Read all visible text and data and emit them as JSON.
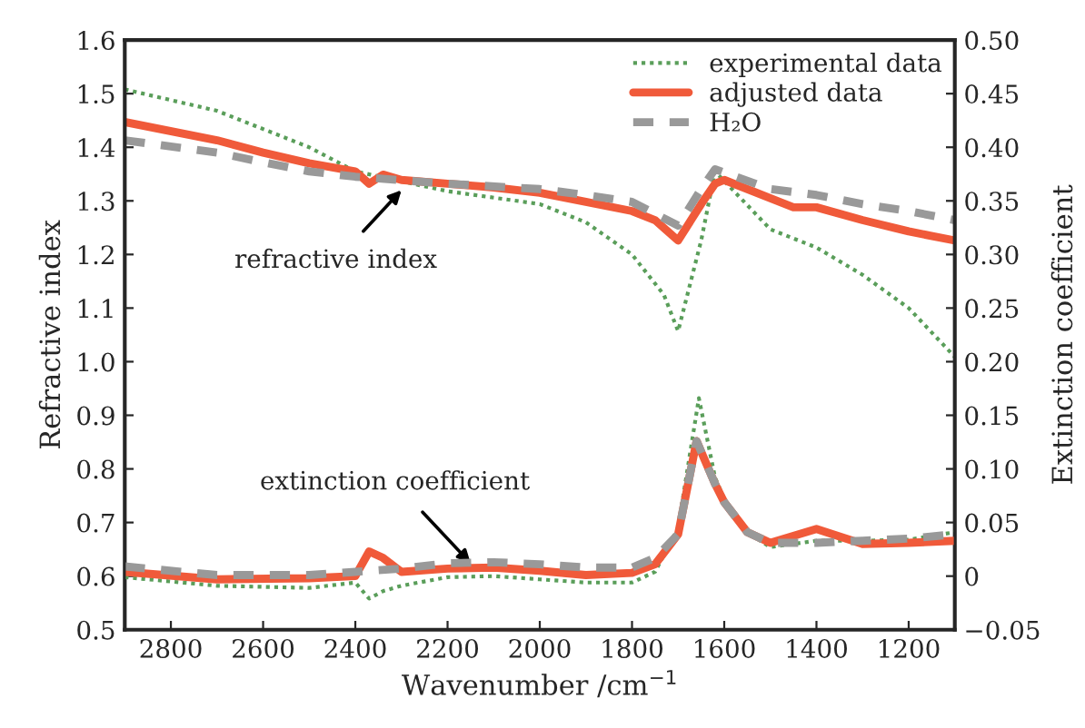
{
  "chart_data": {
    "type": "line",
    "xlabel": "Wavenumber /cm$^{−1}$",
    "ylabel": "Refractive index",
    "y2label": "Extinction coefficient",
    "xlim": [
      2900,
      1100
    ],
    "xticks": [
      2800,
      2600,
      2400,
      2200,
      2000,
      1800,
      1600,
      1400,
      1200
    ],
    "ylim": [
      0.5,
      1.6
    ],
    "yticks": [
      0.5,
      0.6,
      0.7,
      0.8,
      0.9,
      {
        "value": 1.0,
        "label": "1.0"
      },
      1.1,
      1.2,
      1.3,
      1.4,
      1.5,
      1.6
    ],
    "y2lim": [
      -0.05,
      0.5
    ],
    "y2ticks": [
      {
        "value": -0.05,
        "label": "−0.05"
      },
      {
        "value": 0,
        "label": "0"
      },
      {
        "value": 0.05,
        "label": "0.05"
      },
      {
        "value": 0.1,
        "label": "0.10"
      },
      {
        "value": 0.15,
        "label": "0.15"
      },
      {
        "value": 0.2,
        "label": "0.20"
      },
      {
        "value": 0.25,
        "label": "0.25"
      },
      {
        "value": 0.3,
        "label": "0.30"
      },
      {
        "value": 0.35,
        "label": "0.35"
      },
      {
        "value": 0.4,
        "label": "0.40"
      },
      {
        "value": 0.45,
        "label": "0.45"
      },
      {
        "value": 0.5,
        "label": "0.50"
      }
    ],
    "grid": false,
    "legend": "top right",
    "annotations": [
      {
        "text": "refractive index",
        "x": 2300,
        "y": 1.32
      },
      {
        "text": "extinction coefficient",
        "x": 2150,
        "y": 0.624
      }
    ],
    "series": [
      {
        "name": "experimental data",
        "color": "#5a9e5a",
        "line_style": "dotted",
        "x": [
          2900,
          2700,
          2600,
          2500,
          2400,
          2200,
          2000,
          1900,
          1800,
          1731,
          1700,
          1650,
          1620,
          1500,
          1400,
          1300,
          1200,
          1100
        ],
        "values": [
          1.508,
          1.468,
          1.434,
          1.4,
          1.355,
          1.318,
          1.294,
          1.26,
          1.2,
          1.125,
          1.057,
          1.226,
          1.355,
          1.247,
          1.213,
          1.162,
          1.1,
          1.009
        ]
      },
      {
        "name": "adjusted data",
        "color": "#f05a3a",
        "line_style": "solid",
        "x": [
          2900,
          2700,
          2600,
          2500,
          2400,
          2370,
          2340,
          2300,
          2200,
          2100,
          2000,
          1900,
          1800,
          1750,
          1700,
          1650,
          1620,
          1600,
          1500,
          1450,
          1400,
          1300,
          1200,
          1100
        ],
        "values": [
          1.447,
          1.413,
          1.39,
          1.37,
          1.355,
          1.332,
          1.349,
          1.339,
          1.332,
          1.325,
          1.315,
          1.298,
          1.281,
          1.264,
          1.226,
          1.294,
          1.332,
          1.339,
          1.305,
          1.288,
          1.288,
          1.264,
          1.243,
          1.226
        ]
      },
      {
        "name": "H₂O",
        "color": "#999999",
        "line_style": "dashed",
        "x": [
          2900,
          2700,
          2600,
          2500,
          2400,
          2200,
          2000,
          1900,
          1800,
          1700,
          1650,
          1620,
          1500,
          1400,
          1300,
          1200,
          1100
        ],
        "values": [
          1.413,
          1.39,
          1.372,
          1.355,
          1.345,
          1.332,
          1.322,
          1.311,
          1.298,
          1.254,
          1.322,
          1.359,
          1.322,
          1.311,
          1.294,
          1.281,
          1.264
        ]
      },
      {
        "color": "#5a9e5a",
        "line_style": "dotted",
        "axis": "y2",
        "x": [
          2900,
          2700,
          2500,
          2400,
          2370,
          2340,
          2300,
          2200,
          2100,
          2000,
          1900,
          1800,
          1750,
          1700,
          1655,
          1620,
          1600,
          1550,
          1500,
          1400,
          1300,
          1200,
          1100
        ],
        "values": [
          -0.001,
          -0.009,
          -0.011,
          -0.006,
          -0.021,
          -0.014,
          -0.009,
          -0.001,
          0.0,
          -0.003,
          -0.006,
          -0.006,
          0.004,
          0.045,
          0.166,
          0.092,
          0.072,
          0.041,
          0.027,
          0.033,
          0.033,
          0.034,
          0.041
        ]
      },
      {
        "color": "#f05a3a",
        "line_style": "solid",
        "axis": "y2",
        "x": [
          2900,
          2700,
          2500,
          2400,
          2370,
          2340,
          2300,
          2200,
          2100,
          2000,
          1900,
          1800,
          1750,
          1700,
          1660,
          1620,
          1600,
          1550,
          1500,
          1400,
          1300,
          1200,
          1100
        ],
        "values": [
          0.004,
          -0.003,
          -0.002,
          0.0,
          0.023,
          0.017,
          0.004,
          0.007,
          0.008,
          0.005,
          0.001,
          0.003,
          0.011,
          0.039,
          0.126,
          0.086,
          0.069,
          0.041,
          0.031,
          0.044,
          0.03,
          0.031,
          0.033
        ]
      },
      {
        "color": "#999999",
        "line_style": "dashed",
        "axis": "y2",
        "x": [
          2900,
          2700,
          2500,
          2400,
          2300,
          2200,
          2100,
          2000,
          1900,
          1800,
          1750,
          1700,
          1660,
          1620,
          1600,
          1550,
          1500,
          1400,
          1300,
          1200,
          1100
        ],
        "values": [
          0.009,
          0.001,
          0.001,
          0.004,
          0.007,
          0.012,
          0.013,
          0.011,
          0.008,
          0.008,
          0.017,
          0.039,
          0.126,
          0.086,
          0.069,
          0.041,
          0.031,
          0.031,
          0.033,
          0.035,
          0.039
        ]
      }
    ]
  }
}
